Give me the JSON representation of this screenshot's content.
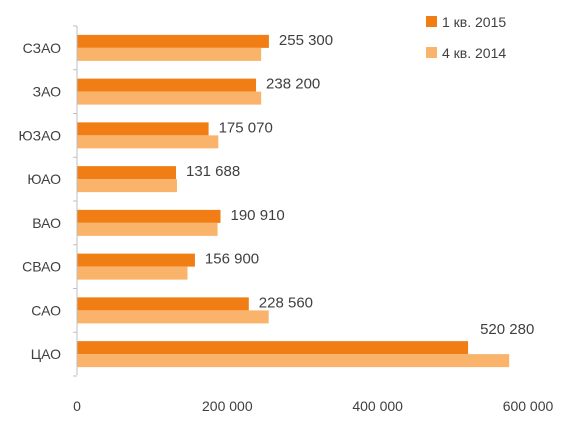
{
  "chart_data": {
    "type": "bar",
    "orientation": "horizontal",
    "categories": [
      "СЗАО",
      "ЗАО",
      "ЮЗАО",
      "ЮАО",
      "ВАО",
      "СВАО",
      "САО",
      "ЦАО"
    ],
    "series": [
      {
        "name": "1 кв. 2015",
        "color": "#f07e14",
        "values": [
          255300,
          238200,
          175070,
          131688,
          190910,
          156900,
          228560,
          520280
        ],
        "data_labels": [
          "255 300",
          "238 200",
          "175 070",
          "131 688",
          "190 910",
          "156 900",
          "228 560",
          "520 280"
        ]
      },
      {
        "name": "4 кв. 2014",
        "color": "#f9b36b",
        "values": [
          245000,
          245000,
          188000,
          133000,
          187000,
          147000,
          255000,
          575000
        ]
      }
    ],
    "xlim": [
      0,
      600000
    ],
    "x_ticks": [
      {
        "value": 0,
        "label": "0"
      },
      {
        "value": 200000,
        "label": "200 000"
      },
      {
        "value": 400000,
        "label": "400 000"
      },
      {
        "value": 600000,
        "label": "600 000"
      }
    ],
    "grid": false,
    "legend_position": "top-right"
  }
}
